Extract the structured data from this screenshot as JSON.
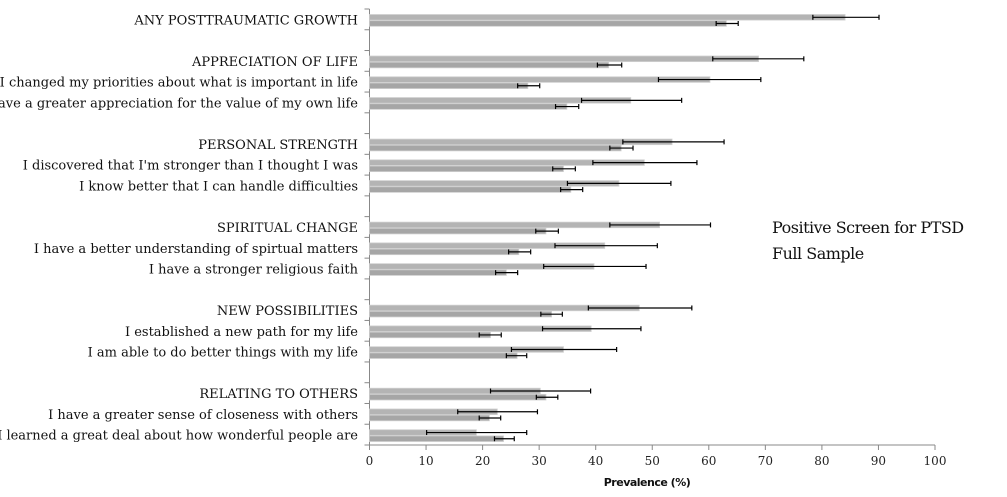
{
  "chart_data": {
    "type": "bar",
    "orientation": "horizontal",
    "xlabel": "Prevalence (%)",
    "xlim": [
      0,
      100
    ],
    "xticks": [
      0,
      10,
      20,
      30,
      40,
      50,
      60,
      70,
      80,
      90,
      100
    ],
    "grid": false,
    "legend_placement": "right",
    "colors": {
      "series_a": "#b4b4b4",
      "series_b": "#a6a6a6",
      "error": "#000000",
      "axis": "#888888"
    },
    "categories": [
      "ANY POSTTRAUMATIC GROWTH",
      "",
      "APPRECIATION OF LIFE",
      "I changed my priorities about what is important in life",
      "I have a greater appreciation for the value of my own life",
      "",
      "PERSONAL STRENGTH",
      "I discovered that I'm stronger than I thought I was",
      "I know better that I can handle difficulties",
      "",
      "SPIRITUAL CHANGE",
      "I have a better understanding of spirtual matters",
      "I have a stronger religious faith",
      "",
      "NEW POSSIBILITIES",
      "I established a new path for my life",
      "I am able to do better things with my life",
      "",
      "RELATING TO OTHERS",
      "I have a greater sense of closeness with others",
      "I learned a great deal about how wonderful people are"
    ],
    "series": [
      {
        "name": "Positive Screen for PTSD",
        "values": [
          84.1,
          null,
          68.8,
          60.2,
          46.2,
          null,
          53.5,
          48.6,
          44.1,
          null,
          51.3,
          41.6,
          39.7,
          null,
          47.7,
          39.2,
          34.3,
          null,
          30.2,
          22.6,
          18.9
        ],
        "ci_low": [
          78.4,
          null,
          60.7,
          51.1,
          37.5,
          null,
          44.8,
          39.5,
          35.0,
          null,
          42.5,
          32.8,
          30.8,
          null,
          38.7,
          30.6,
          25.1,
          null,
          21.4,
          15.6,
          10.1
        ],
        "ci_high": [
          90.1,
          null,
          76.8,
          69.2,
          55.2,
          null,
          62.7,
          57.9,
          53.3,
          null,
          60.3,
          50.9,
          48.9,
          null,
          57.0,
          48.0,
          43.7,
          null,
          39.1,
          29.7,
          27.8
        ]
      },
      {
        "name": "Full Sample",
        "values": [
          63.1,
          null,
          42.3,
          28.0,
          34.9,
          null,
          44.5,
          34.3,
          35.6,
          null,
          31.2,
          26.4,
          24.2,
          null,
          32.2,
          21.4,
          26.1,
          null,
          31.2,
          21.2,
          23.7
        ],
        "ci_low": [
          61.3,
          null,
          40.3,
          26.2,
          32.9,
          null,
          42.5,
          32.4,
          33.8,
          null,
          29.4,
          24.6,
          22.3,
          null,
          30.3,
          19.4,
          24.2,
          null,
          29.5,
          19.4,
          22.1
        ],
        "ci_high": [
          65.2,
          null,
          44.6,
          30.1,
          37.0,
          null,
          46.6,
          36.4,
          37.7,
          null,
          33.4,
          28.5,
          26.2,
          null,
          34.1,
          23.3,
          27.8,
          null,
          33.3,
          23.2,
          25.6
        ]
      }
    ]
  }
}
